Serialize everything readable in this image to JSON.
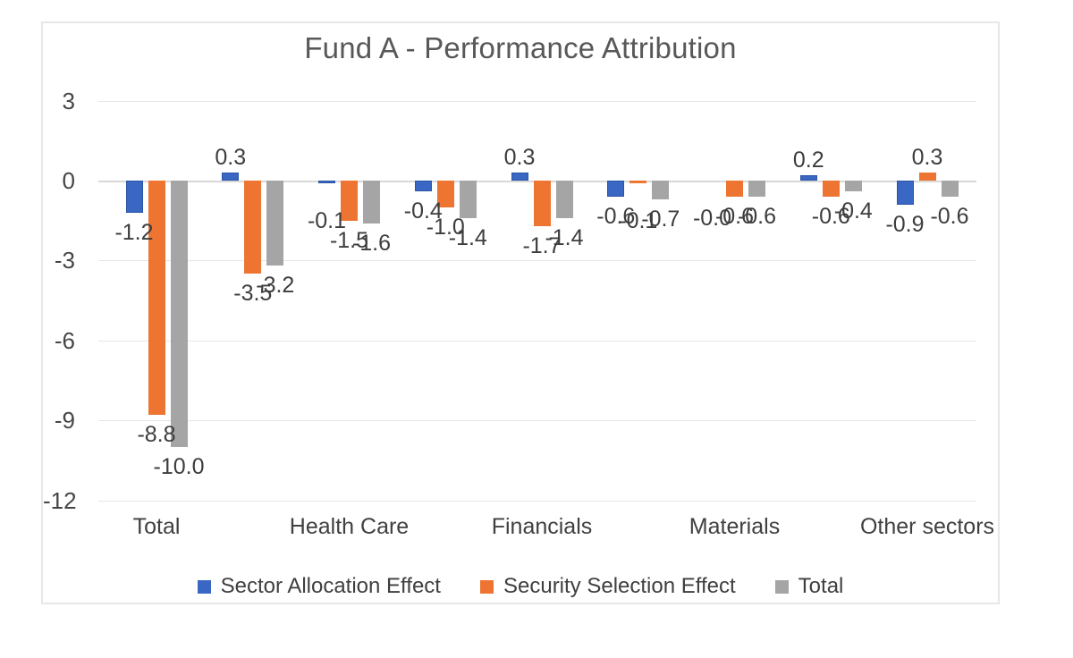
{
  "chart_data": {
    "type": "bar",
    "title": "Fund A - Performance Attribution",
    "categories": [
      "Total",
      "",
      "Health Care",
      "",
      "Financials",
      "",
      "Materials",
      "",
      "Other sectors"
    ],
    "series": [
      {
        "name": "Sector Allocation Effect",
        "color": "#3a66c4",
        "border_color": "#2b55a5",
        "values": [
          -1.2,
          0.3,
          -0.1,
          -0.4,
          0.3,
          -0.6,
          0.0,
          0.2,
          -0.9
        ],
        "labels": [
          "-1.2",
          "0.3",
          "-0.1",
          "-0.4",
          "0.3",
          "-0.6",
          "-0.0",
          "0.2",
          "-0.9"
        ]
      },
      {
        "name": "Security Selection Effect",
        "color": "#ed7431",
        "border_color": "#ed7431",
        "values": [
          -8.8,
          -3.5,
          -1.5,
          -1.0,
          -1.7,
          -0.1,
          -0.6,
          -0.6,
          0.3
        ],
        "labels": [
          "-8.8",
          "-3.5",
          "-1.5",
          "-1.0",
          "-1.7",
          "-0.1",
          "-0.6",
          "-0.6",
          "0.3"
        ]
      },
      {
        "name": "Total",
        "color": "#a5a5a5",
        "border_color": "#a5a5a5",
        "values": [
          -10.0,
          -3.2,
          -1.6,
          -1.4,
          -1.4,
          -0.7,
          -0.6,
          -0.4,
          -0.6
        ],
        "labels": [
          "-10.0",
          "-3.2",
          "-1.6",
          "-1.4",
          "-1.4",
          "-0.7",
          "-0.6",
          "-0.4",
          "-0.6"
        ]
      }
    ],
    "y_axis": {
      "ticks": [
        3,
        0,
        -3,
        -6,
        -9,
        -12
      ],
      "tick_labels": [
        "3",
        "0",
        "-3",
        "-6",
        "-9",
        "-12"
      ]
    },
    "ylim": [
      -12,
      3
    ],
    "grid": true,
    "legend_position": "bottom"
  }
}
